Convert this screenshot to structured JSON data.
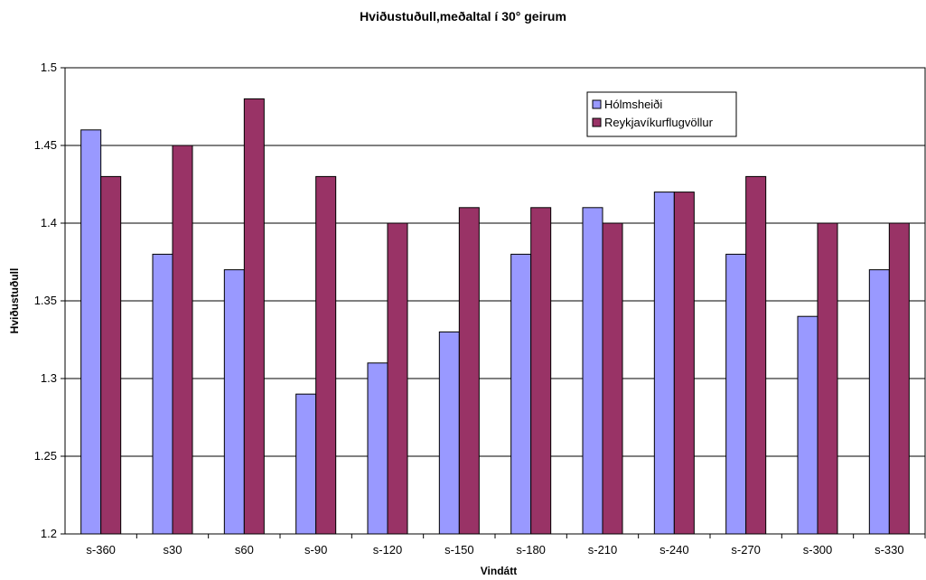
{
  "chart_data": {
    "type": "bar",
    "title": "Hviðustuðull,meðaltal í 30° geirum",
    "xlabel": "Vindátt",
    "ylabel": "Hviðustuðull",
    "ylim": [
      1.2,
      1.5
    ],
    "yticks": [
      "1.2",
      "1.25",
      "1.3",
      "1.35",
      "1.4",
      "1.45",
      "1.5"
    ],
    "grid": true,
    "legend_position": "top-right",
    "categories": [
      "s-360",
      "s30",
      "s60",
      "s-90",
      "s-120",
      "s-150",
      "s-180",
      "s-210",
      "s-240",
      "s-270",
      "s-300",
      "s-330"
    ],
    "series": [
      {
        "name": "Hólmsheiði",
        "color": "#9999ff",
        "values": [
          1.46,
          1.38,
          1.37,
          1.29,
          1.31,
          1.33,
          1.38,
          1.41,
          1.42,
          1.38,
          1.34,
          1.37
        ]
      },
      {
        "name": "Reykjavíkurflugvöllur",
        "color": "#993366",
        "values": [
          1.43,
          1.45,
          1.48,
          1.43,
          1.4,
          1.41,
          1.41,
          1.4,
          1.42,
          1.43,
          1.4,
          1.4
        ]
      }
    ]
  }
}
